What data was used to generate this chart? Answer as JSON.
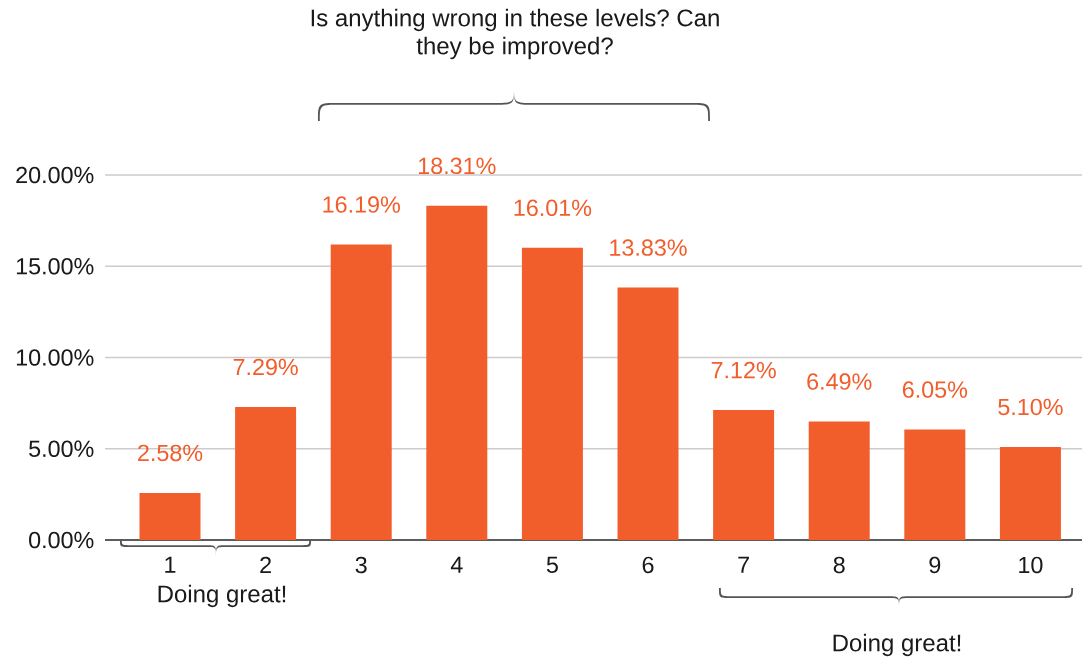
{
  "chart_data": {
    "type": "bar",
    "categories": [
      "1",
      "2",
      "3",
      "4",
      "5",
      "6",
      "7",
      "8",
      "9",
      "10"
    ],
    "values": [
      2.58,
      7.29,
      16.19,
      18.31,
      16.01,
      13.83,
      7.12,
      6.49,
      6.05,
      5.1
    ],
    "color": "#f15d2b",
    "value_labels": [
      "2.58%",
      "7.29%",
      "16.19%",
      "18.31%",
      "16.01%",
      "13.83%",
      "7.12%",
      "6.49%",
      "6.05%",
      "5.10%"
    ],
    "ylim": [
      0,
      20
    ],
    "yticks": [
      {
        "value": 0,
        "label": "0.00%"
      },
      {
        "value": 5,
        "label": "5.00%"
      },
      {
        "value": 10,
        "label": "10.00%"
      },
      {
        "value": 15,
        "label": "15.00%"
      },
      {
        "value": 20,
        "label": "20.00%"
      }
    ],
    "grid": "y",
    "annotations": [
      "Is anything wrong in these levels? Can they be improved?",
      "Doing great!",
      "Doing great!"
    ]
  }
}
